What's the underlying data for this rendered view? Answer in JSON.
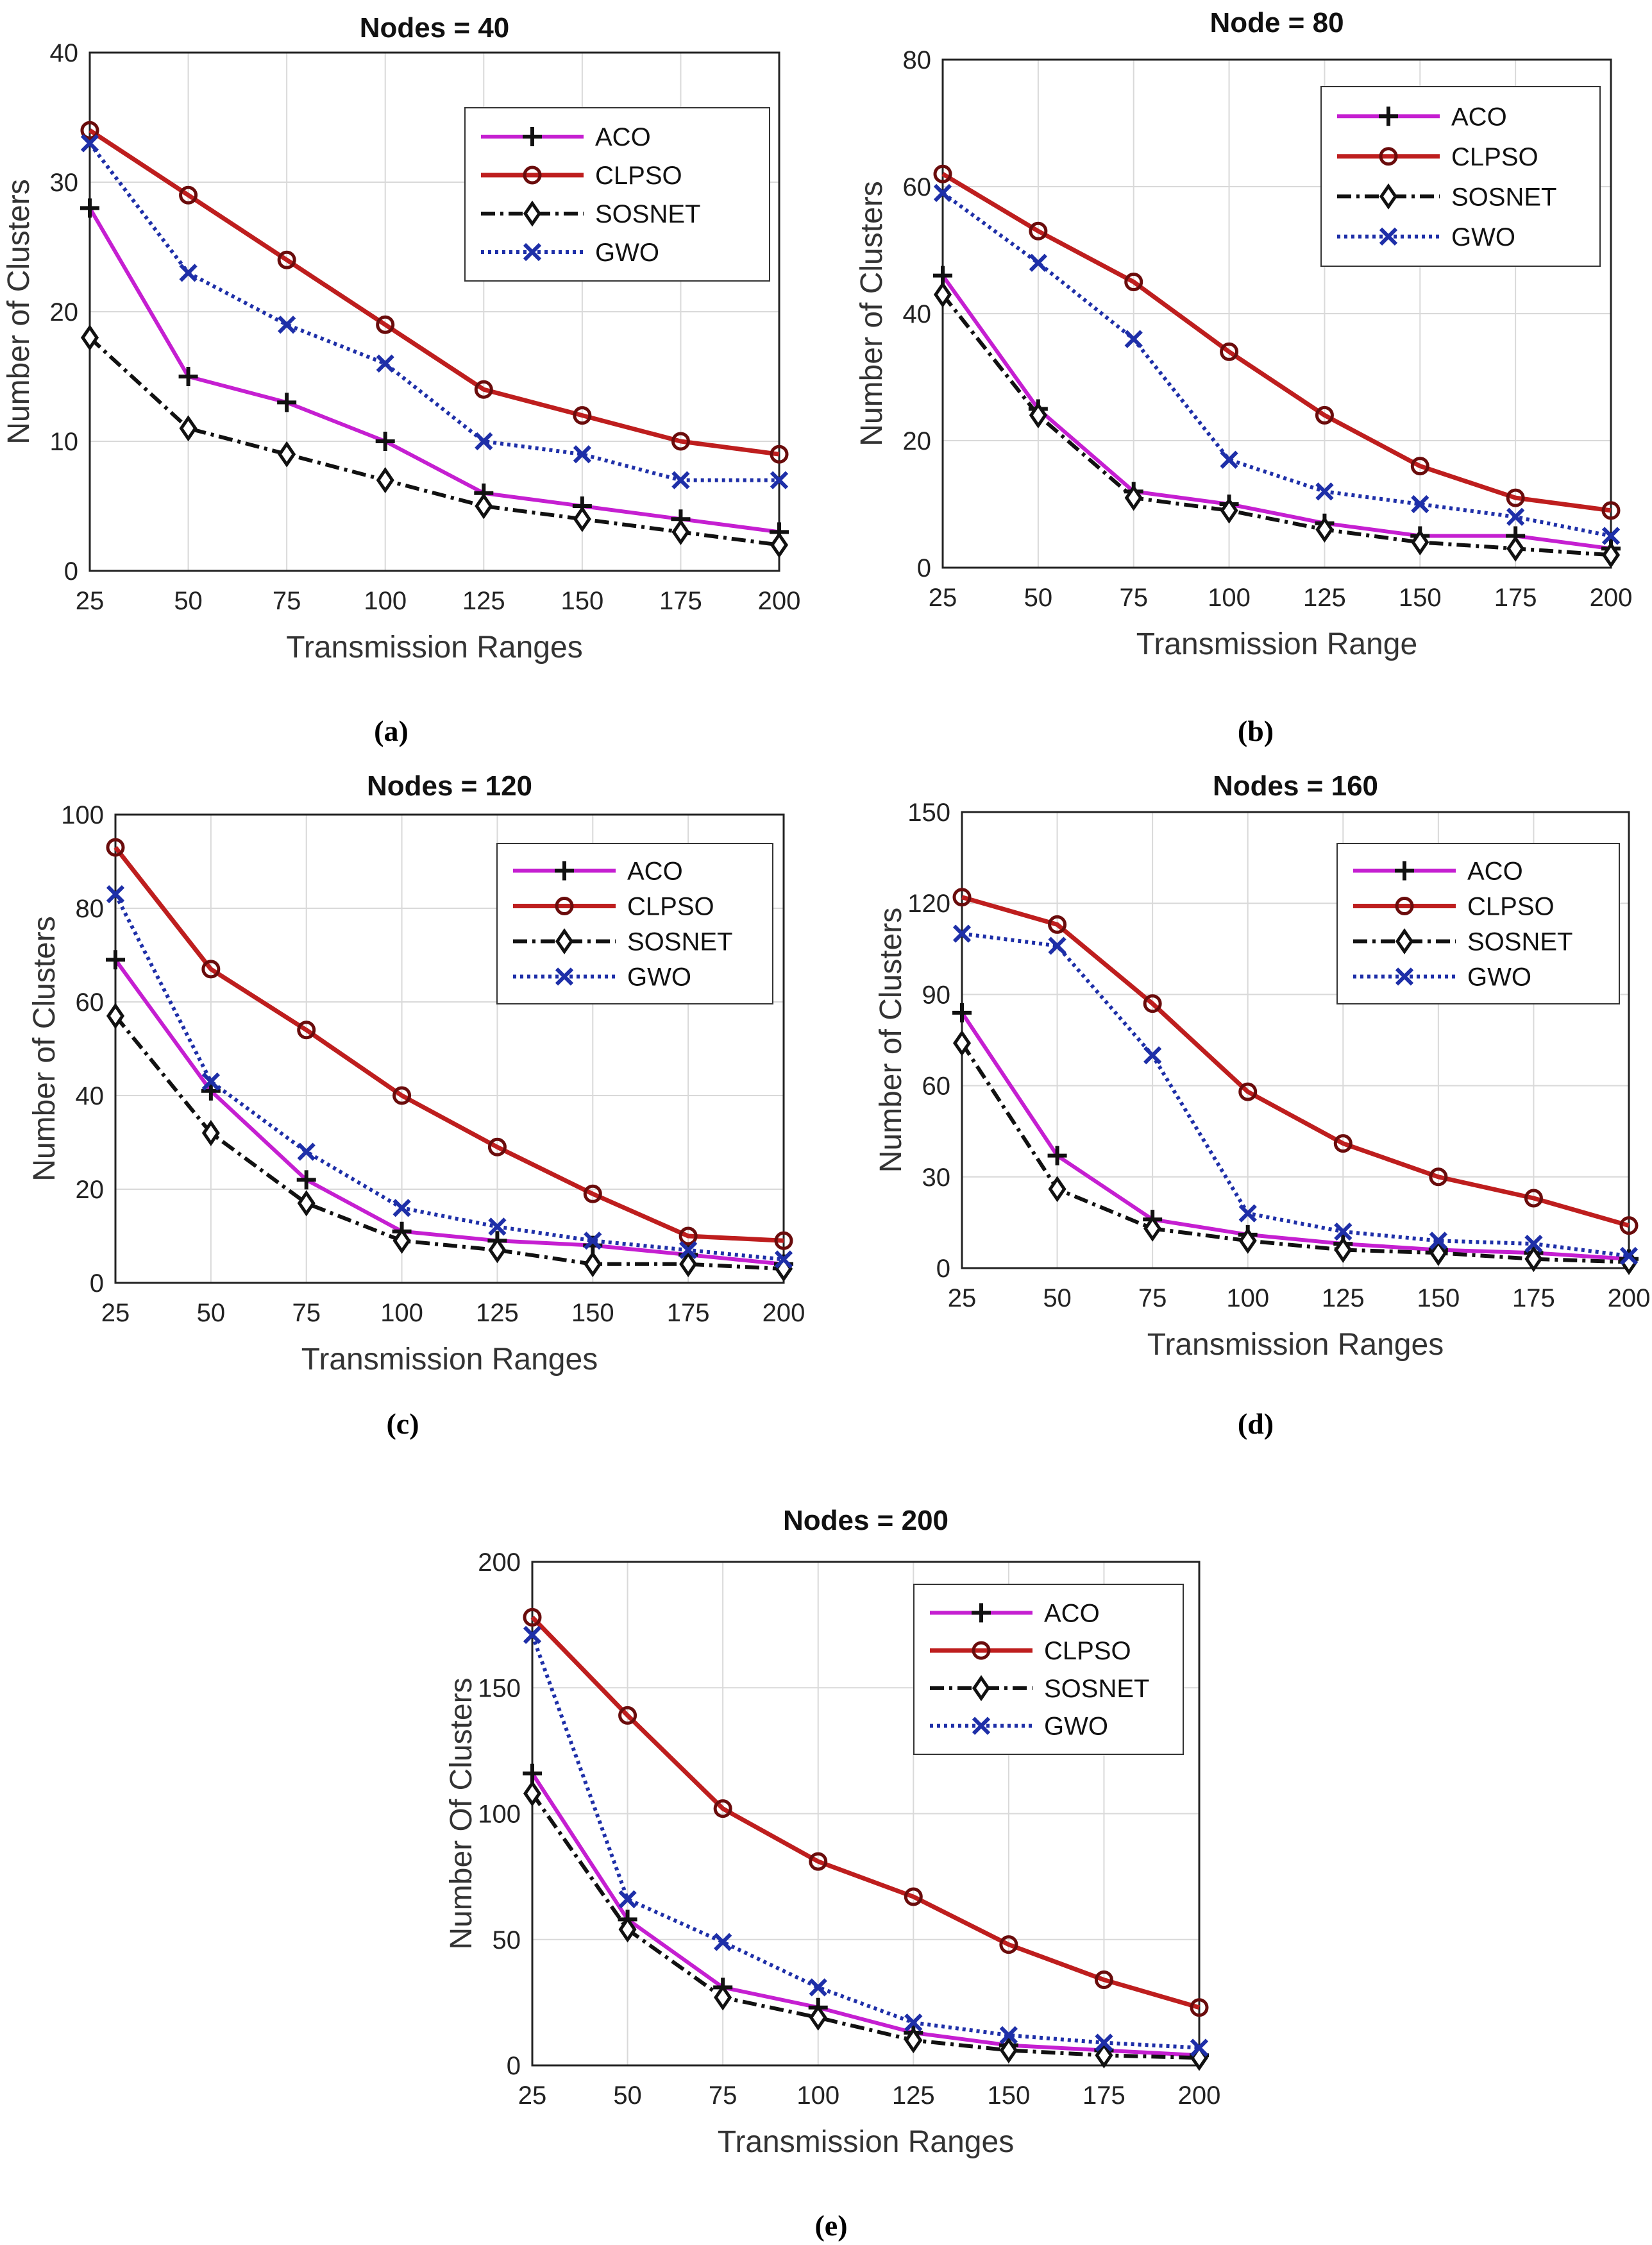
{
  "styles": {
    "ACO": {
      "color": "#c51fd1",
      "marker": "plus",
      "dash": "",
      "width": 6
    },
    "CLPSO": {
      "color": "#be1e1e",
      "marker": "circle",
      "dash": "",
      "width": 7
    },
    "SOSNET": {
      "color": "#111111",
      "marker": "diamond",
      "dash": "22 8 5 8",
      "width": 6
    },
    "GWO": {
      "color": "#1e2fa8",
      "marker": "x",
      "dash": "5 6",
      "width": 6
    }
  },
  "chart_data": [
    {
      "type": "line",
      "caption": "(a)",
      "title": "Nodes = 40",
      "xlabel": "Transmission Ranges",
      "ylabel": "Number of Clusters",
      "x": [
        25,
        50,
        75,
        100,
        125,
        150,
        175,
        200
      ],
      "x_tick_labels": [
        "25",
        "50",
        "75",
        "100",
        "125",
        "150",
        "175",
        "200"
      ],
      "ylim": [
        0,
        40
      ],
      "y_ticks": [
        0,
        10,
        20,
        30,
        40
      ],
      "y_tick_labels": [
        "0",
        "10",
        "20",
        "30",
        "40"
      ],
      "grid": true,
      "legend": "top-right",
      "series": [
        {
          "name": "ACO",
          "values": [
            28,
            15,
            13,
            10,
            6,
            5,
            4,
            3
          ]
        },
        {
          "name": "CLPSO",
          "values": [
            34,
            29,
            24,
            19,
            14,
            12,
            10,
            9
          ]
        },
        {
          "name": "SOSNET",
          "values": [
            18,
            11,
            9,
            7,
            5,
            4,
            3,
            2
          ]
        },
        {
          "name": "GWO",
          "values": [
            33,
            23,
            19,
            16,
            10,
            9,
            7,
            7
          ]
        }
      ]
    },
    {
      "type": "line",
      "caption": "(b)",
      "title": "Node = 80",
      "xlabel": "Transmission Range",
      "ylabel": "Number of Clusters",
      "x": [
        25,
        50,
        75,
        100,
        125,
        150,
        175,
        200
      ],
      "x_tick_labels": [
        "25",
        "50",
        "75",
        "100",
        "125",
        "150",
        "175",
        "200"
      ],
      "ylim": [
        0,
        80
      ],
      "y_ticks": [
        0,
        20,
        40,
        60,
        80
      ],
      "y_tick_labels": [
        "0",
        "20",
        "40",
        "60",
        "80"
      ],
      "grid": true,
      "legend": "top-right",
      "series": [
        {
          "name": "ACO",
          "values": [
            46,
            25,
            12,
            10,
            7,
            5,
            5,
            3
          ]
        },
        {
          "name": "CLPSO",
          "values": [
            62,
            53,
            45,
            34,
            24,
            16,
            11,
            9
          ]
        },
        {
          "name": "SOSNET",
          "values": [
            43,
            24,
            11,
            9,
            6,
            4,
            3,
            2
          ]
        },
        {
          "name": "GWO",
          "values": [
            59,
            48,
            36,
            17,
            12,
            10,
            8,
            5
          ]
        }
      ]
    },
    {
      "type": "line",
      "caption": "(c)",
      "title": "Nodes = 120",
      "xlabel": "Transmission Ranges",
      "ylabel": "Number of Clusters",
      "x": [
        25,
        50,
        75,
        100,
        125,
        150,
        175,
        200
      ],
      "x_tick_labels": [
        "25",
        "50",
        "75",
        "100",
        "125",
        "150",
        "175",
        "200"
      ],
      "ylim": [
        0,
        100
      ],
      "y_ticks": [
        0,
        20,
        40,
        60,
        80,
        100
      ],
      "y_tick_labels": [
        "0",
        "20",
        "40",
        "60",
        "80",
        "100"
      ],
      "grid": true,
      "legend": "top-right",
      "series": [
        {
          "name": "ACO",
          "values": [
            69,
            41,
            22,
            11,
            9,
            8,
            6,
            4
          ]
        },
        {
          "name": "CLPSO",
          "values": [
            93,
            67,
            54,
            40,
            29,
            19,
            10,
            9
          ]
        },
        {
          "name": "SOSNET",
          "values": [
            57,
            32,
            17,
            9,
            7,
            4,
            4,
            3
          ]
        },
        {
          "name": "GWO",
          "values": [
            83,
            43,
            28,
            16,
            12,
            9,
            7,
            5
          ]
        }
      ]
    },
    {
      "type": "line",
      "caption": "(d)",
      "title": "Nodes =  160",
      "xlabel": "Transmission Ranges",
      "ylabel": "Number of Clusters",
      "x": [
        25,
        50,
        75,
        100,
        125,
        150,
        175,
        200
      ],
      "x_tick_labels": [
        "25",
        "50",
        "75",
        "100",
        "125",
        "150",
        "175",
        "200"
      ],
      "ylim": [
        0,
        150
      ],
      "y_ticks": [
        0,
        30,
        60,
        90,
        120,
        150
      ],
      "y_tick_labels": [
        "0",
        "30",
        "60",
        "90",
        "120",
        "150"
      ],
      "grid": true,
      "legend": "top-right",
      "series": [
        {
          "name": "ACO",
          "values": [
            84,
            37,
            16,
            11,
            8,
            6,
            5,
            3
          ]
        },
        {
          "name": "CLPSO",
          "values": [
            122,
            113,
            87,
            58,
            41,
            30,
            23,
            14
          ]
        },
        {
          "name": "SOSNET",
          "values": [
            74,
            26,
            13,
            9,
            6,
            5,
            3,
            2
          ]
        },
        {
          "name": "GWO",
          "values": [
            110,
            106,
            70,
            18,
            12,
            9,
            8,
            4
          ]
        }
      ]
    },
    {
      "type": "line",
      "caption": "(e)",
      "title": "Nodes = 200",
      "xlabel": "Transmission Ranges",
      "ylabel": "Number Of Clusters",
      "x": [
        25,
        50,
        75,
        100,
        125,
        150,
        175,
        200
      ],
      "x_tick_labels": [
        "25",
        "50",
        "75",
        "100",
        "125",
        "150",
        "175",
        "200"
      ],
      "ylim": [
        0,
        200
      ],
      "y_ticks": [
        0,
        50,
        100,
        150,
        200
      ],
      "y_tick_labels": [
        "0",
        "50",
        "100",
        "150",
        "200"
      ],
      "grid": true,
      "legend": "top-right",
      "series": [
        {
          "name": "ACO",
          "values": [
            116,
            58,
            31,
            23,
            13,
            8,
            6,
            4
          ]
        },
        {
          "name": "CLPSO",
          "values": [
            178,
            139,
            102,
            81,
            67,
            48,
            34,
            23
          ]
        },
        {
          "name": "SOSNET",
          "values": [
            108,
            54,
            27,
            19,
            10,
            6,
            4,
            3
          ]
        },
        {
          "name": "GWO",
          "values": [
            171,
            66,
            49,
            31,
            17,
            12,
            9,
            7
          ]
        }
      ]
    }
  ]
}
